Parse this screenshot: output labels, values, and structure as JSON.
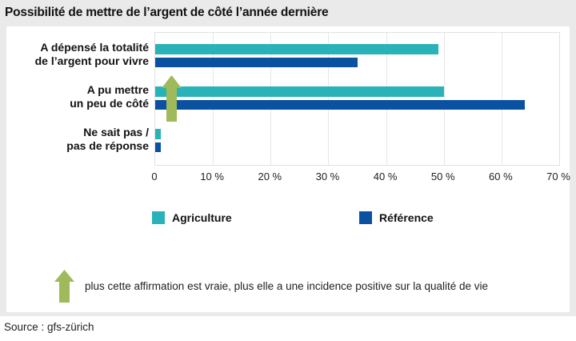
{
  "title": "Possibilité de mettre de l’argent de côté l’année dernière",
  "source": "Source : gfs-zürich",
  "annotation": {
    "text": "plus cette affirmation est vraie, plus elle a une incidence positive sur la qualité de vie"
  },
  "colors": {
    "agriculture_teal": "#29b3b8",
    "reference_blue": "#0b51a2",
    "arrow_green": "#9eba5a",
    "background_gray": "#eaeaea",
    "gridline": "#e7e7e7"
  },
  "legend": [
    {
      "label": "Agriculture"
    },
    {
      "label": "Référence"
    }
  ],
  "chart_data": {
    "type": "bar",
    "orientation": "horizontal",
    "title": "Possibilité de mettre de l’argent de côté l’année dernière",
    "categories": [
      "A dépensé la totalité de l’argent pour vivre",
      "A pu mettre un peu de côté",
      "Ne sait pas / pas de réponse"
    ],
    "category_lines": [
      [
        "A dépensé la totalité",
        "de l’argent pour vivre"
      ],
      [
        "A pu mettre",
        "un peu de côté"
      ],
      [
        "Ne sait pas /",
        "pas de réponse"
      ]
    ],
    "series": [
      {
        "name": "Agriculture",
        "color": "#29b3b8",
        "values": [
          49,
          50,
          1
        ]
      },
      {
        "name": "Référence",
        "color": "#0b51a2",
        "values": [
          35,
          64,
          1
        ]
      }
    ],
    "unit": "%",
    "xlim": [
      0,
      70
    ],
    "tick_step": 10,
    "tick_labels": [
      "0",
      "10 %",
      "20 %",
      "30 %",
      "40 %",
      "50 %",
      "60 %",
      "70 %"
    ],
    "grid": true,
    "legend_position": "bottom"
  }
}
